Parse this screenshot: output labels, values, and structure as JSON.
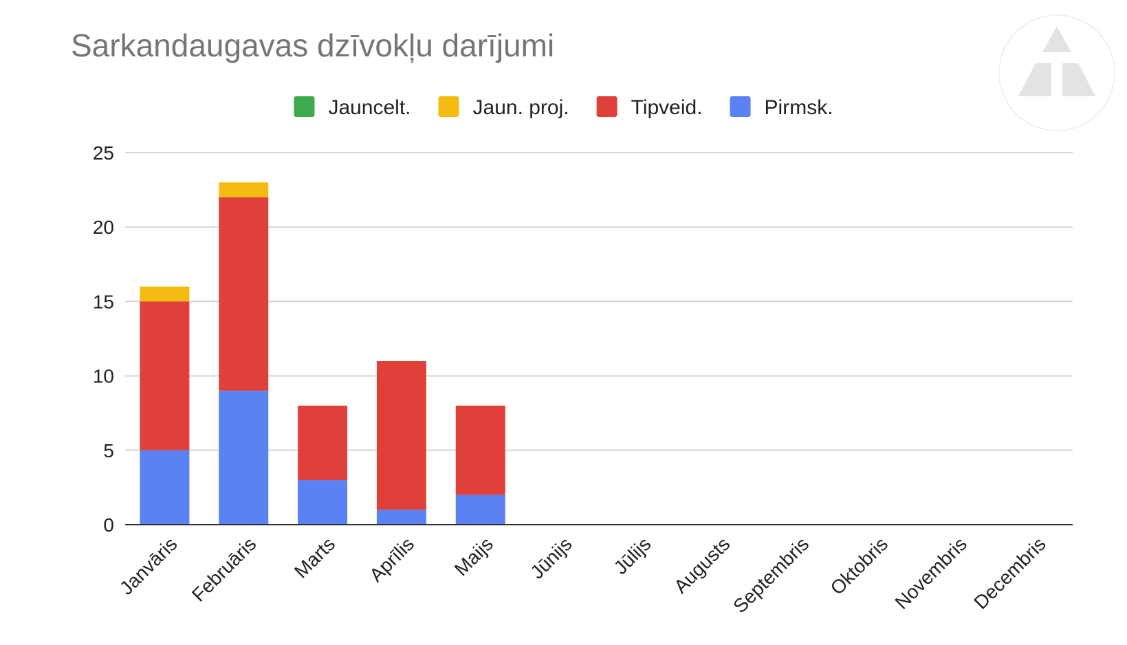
{
  "chart_data": {
    "type": "bar",
    "stacked": true,
    "title": "Sarkandaugavas dzīvokļu darījumi",
    "categories": [
      "Janvāris",
      "Februāris",
      "Marts",
      "Aprīlis",
      "Maijs",
      "Jūnijs",
      "Jūlijs",
      "Augusts",
      "Septembris",
      "Oktobris",
      "Novembris",
      "Decembris"
    ],
    "series": [
      {
        "name": "Pirmsk.",
        "color": "#5b82f3",
        "values": [
          5,
          9,
          3,
          1,
          2,
          0,
          0,
          0,
          0,
          0,
          0,
          0
        ]
      },
      {
        "name": "Tipveid.",
        "color": "#e0403a",
        "values": [
          10,
          13,
          5,
          10,
          6,
          0,
          0,
          0,
          0,
          0,
          0,
          0
        ]
      },
      {
        "name": "Jaun. proj.",
        "color": "#f4bb12",
        "values": [
          1,
          1,
          0,
          0,
          0,
          0,
          0,
          0,
          0,
          0,
          0,
          0
        ]
      },
      {
        "name": "Jauncelt.",
        "color": "#3ea94f",
        "values": [
          0,
          0,
          0,
          0,
          0,
          0,
          0,
          0,
          0,
          0,
          0,
          0
        ]
      }
    ],
    "legend_order": [
      "Jauncelt.",
      "Jaun. proj.",
      "Tipveid.",
      "Pirmsk."
    ],
    "ylim": [
      0,
      25
    ],
    "yticks": [
      0,
      5,
      10,
      15,
      20,
      25
    ],
    "xlabel": "",
    "ylabel": "",
    "grid": true,
    "legend_position": "top"
  }
}
